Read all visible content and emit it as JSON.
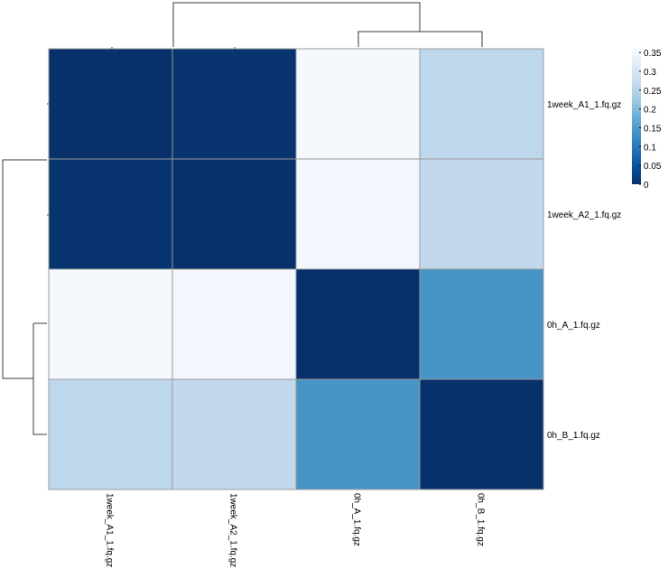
{
  "chart_data": {
    "type": "heatmap",
    "title": "",
    "rows": [
      "1week_A1_1.fq.gz",
      "1week_A2_1.fq.gz",
      "0h_A_1.fq.gz",
      "0h_B_1.fq.gz"
    ],
    "columns": [
      "1week_A1_1.fq.gz",
      "1week_A2_1.fq.gz",
      "0h_A_1.fq.gz",
      "0h_B_1.fq.gz"
    ],
    "values": [
      [
        0.0,
        0.005,
        0.355,
        0.26
      ],
      [
        0.005,
        0.0,
        0.35,
        0.265
      ],
      [
        0.355,
        0.35,
        0.0,
        0.14
      ],
      [
        0.26,
        0.265,
        0.14,
        0.0
      ]
    ],
    "colorbar": {
      "min": 0,
      "max": 0.36,
      "ticks": [
        "0",
        "0.05",
        "0.1",
        "0.15",
        "0.2",
        "0.25",
        "0.3",
        "0.35"
      ],
      "tick_values": [
        0,
        0.05,
        0.1,
        0.15,
        0.2,
        0.25,
        0.3,
        0.35
      ],
      "colormap": [
        "#08306b",
        "#08519c",
        "#2171b5",
        "#4292c6",
        "#6baed6",
        "#9ecae1",
        "#c6dbef",
        "#deebf7",
        "#f7fbff"
      ]
    },
    "row_dendrogram": true,
    "column_dendrogram": true,
    "grid": true,
    "legend_position": "top-right"
  }
}
